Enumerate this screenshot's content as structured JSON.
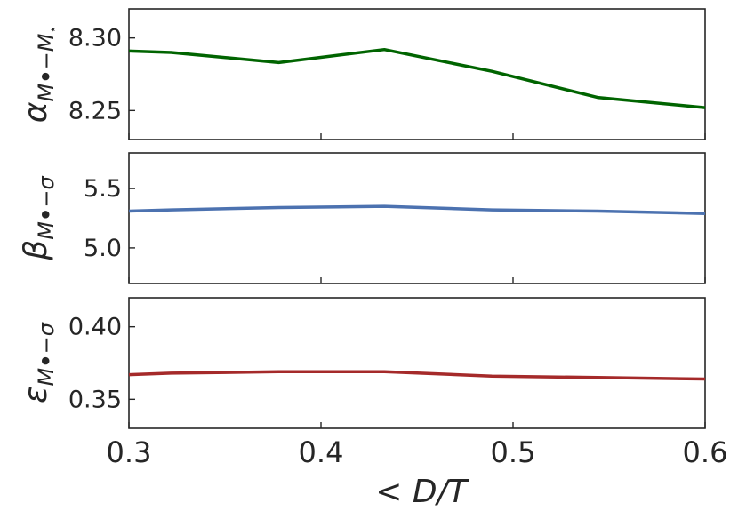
{
  "chart_data": [
    {
      "type": "line",
      "ylabel": "α_{M•−M⋆}",
      "ylabel_base": "α",
      "ylabel_sub": "M",
      "ylabel_sub_rest": "−M",
      "ylabel_subsub": "⋆",
      "x": [
        0.3,
        0.322,
        0.378,
        0.433,
        0.489,
        0.544,
        0.6
      ],
      "series": [
        {
          "values": [
            8.291,
            8.29,
            8.283,
            8.292,
            8.277,
            8.259,
            8.252
          ],
          "color": "#006400"
        }
      ],
      "ylim": [
        8.23,
        8.32
      ],
      "yticks": [
        8.25,
        8.3
      ],
      "ytick_labels": [
        "8.25",
        "8.30"
      ],
      "xlim": [
        0.3,
        0.6
      ],
      "grid": false
    },
    {
      "type": "line",
      "ylabel": "β_{M•−σ}",
      "ylabel_base": "β",
      "ylabel_sub": "M",
      "ylabel_sub_rest": "−σ",
      "x": [
        0.3,
        0.322,
        0.378,
        0.433,
        0.489,
        0.544,
        0.6
      ],
      "series": [
        {
          "values": [
            5.31,
            5.32,
            5.34,
            5.35,
            5.32,
            5.31,
            5.29
          ],
          "color": "#4c72b0"
        }
      ],
      "ylim": [
        4.7,
        5.8
      ],
      "yticks": [
        5.0,
        5.5
      ],
      "ytick_labels": [
        "5.0",
        "5.5"
      ],
      "xlim": [
        0.3,
        0.6
      ],
      "grid": false
    },
    {
      "type": "line",
      "ylabel": "ε_{M•−σ}",
      "ylabel_base": "ε",
      "ylabel_sub": "M",
      "ylabel_sub_rest": "−σ",
      "x": [
        0.3,
        0.322,
        0.378,
        0.433,
        0.489,
        0.544,
        0.6
      ],
      "series": [
        {
          "values": [
            0.367,
            0.368,
            0.369,
            0.369,
            0.366,
            0.365,
            0.364
          ],
          "color": "#a52a2a"
        }
      ],
      "ylim": [
        0.33,
        0.42
      ],
      "yticks": [
        0.35,
        0.4
      ],
      "ytick_labels": [
        "0.35",
        "0.40"
      ],
      "xlim": [
        0.3,
        0.6
      ],
      "xticks": [
        0.3,
        0.4,
        0.5,
        0.6
      ],
      "xtick_labels": [
        "0.3",
        "0.4",
        "0.5",
        "0.6"
      ],
      "xlabel": "< D/T",
      "grid": false
    }
  ]
}
